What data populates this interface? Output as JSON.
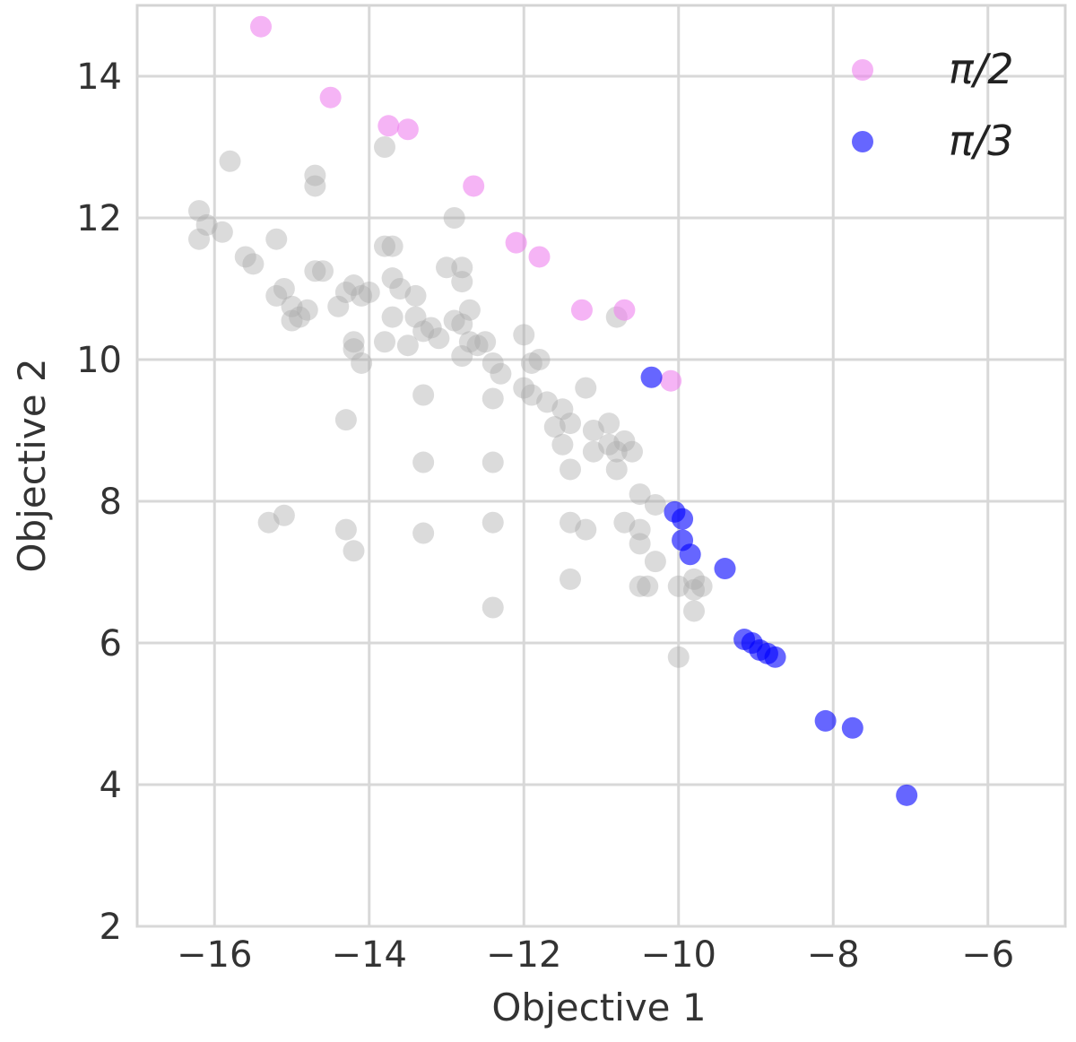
{
  "chart_data": {
    "type": "scatter",
    "title": "",
    "xlabel": "Objective 1",
    "ylabel": "Objective 2",
    "xlim": [
      -17,
      -5
    ],
    "ylim": [
      2,
      15
    ],
    "xticks": [
      -16,
      -14,
      -12,
      -10,
      -8,
      -6
    ],
    "yticks": [
      2,
      4,
      6,
      8,
      10,
      12,
      14
    ],
    "xtick_labels": [
      "−16",
      "−14",
      "−12",
      "−10",
      "−8",
      "−6"
    ],
    "ytick_labels": [
      "2",
      "4",
      "6",
      "8",
      "10",
      "12",
      "14"
    ],
    "grid": true,
    "legend_position": "top-right",
    "background_points": {
      "color": "#a9a9a9",
      "points": [
        [
          -15.8,
          12.8
        ],
        [
          -16.2,
          12.1
        ],
        [
          -16.1,
          11.9
        ],
        [
          -15.9,
          11.8
        ],
        [
          -16.2,
          11.7
        ],
        [
          -15.6,
          11.45
        ],
        [
          -15.5,
          11.35
        ],
        [
          -15.2,
          11.7
        ],
        [
          -15.1,
          11.0
        ],
        [
          -15.2,
          10.9
        ],
        [
          -15.0,
          10.75
        ],
        [
          -15.0,
          10.55
        ],
        [
          -14.9,
          10.6
        ],
        [
          -14.8,
          10.7
        ],
        [
          -14.7,
          11.25
        ],
        [
          -14.6,
          11.25
        ],
        [
          -14.7,
          12.6
        ],
        [
          -14.7,
          12.45
        ],
        [
          -14.4,
          10.75
        ],
        [
          -14.3,
          10.95
        ],
        [
          -14.2,
          11.05
        ],
        [
          -14.1,
          10.9
        ],
        [
          -14.0,
          10.95
        ],
        [
          -14.2,
          10.25
        ],
        [
          -14.2,
          10.15
        ],
        [
          -14.1,
          9.95
        ],
        [
          -14.3,
          9.15
        ],
        [
          -13.8,
          13.0
        ],
        [
          -13.8,
          11.6
        ],
        [
          -13.7,
          11.6
        ],
        [
          -13.7,
          11.15
        ],
        [
          -13.6,
          11.0
        ],
        [
          -13.7,
          10.6
        ],
        [
          -13.8,
          10.25
        ],
        [
          -13.5,
          10.2
        ],
        [
          -13.4,
          10.9
        ],
        [
          -13.4,
          10.6
        ],
        [
          -13.3,
          10.4
        ],
        [
          -13.2,
          10.45
        ],
        [
          -13.1,
          10.3
        ],
        [
          -13.3,
          9.5
        ],
        [
          -13.3,
          8.55
        ],
        [
          -13.3,
          7.55
        ],
        [
          -12.9,
          12.0
        ],
        [
          -13.0,
          11.3
        ],
        [
          -12.8,
          11.3
        ],
        [
          -12.8,
          11.1
        ],
        [
          -12.9,
          10.55
        ],
        [
          -12.8,
          10.5
        ],
        [
          -12.7,
          10.7
        ],
        [
          -12.7,
          10.25
        ],
        [
          -12.6,
          10.2
        ],
        [
          -12.8,
          10.05
        ],
        [
          -12.5,
          10.25
        ],
        [
          -12.4,
          9.95
        ],
        [
          -12.3,
          9.8
        ],
        [
          -12.4,
          9.45
        ],
        [
          -12.4,
          8.55
        ],
        [
          -12.4,
          7.7
        ],
        [
          -12.4,
          6.5
        ],
        [
          -12.0,
          10.35
        ],
        [
          -11.9,
          9.95
        ],
        [
          -11.8,
          10.0
        ],
        [
          -12.0,
          9.6
        ],
        [
          -11.9,
          9.5
        ],
        [
          -11.7,
          9.4
        ],
        [
          -11.5,
          9.3
        ],
        [
          -11.6,
          9.05
        ],
        [
          -11.4,
          9.1
        ],
        [
          -11.5,
          8.8
        ],
        [
          -11.2,
          9.6
        ],
        [
          -11.1,
          9.0
        ],
        [
          -11.1,
          8.7
        ],
        [
          -10.9,
          9.1
        ],
        [
          -10.9,
          8.8
        ],
        [
          -10.8,
          8.7
        ],
        [
          -10.7,
          8.85
        ],
        [
          -10.6,
          8.7
        ],
        [
          -10.8,
          8.45
        ],
        [
          -11.4,
          8.45
        ],
        [
          -11.4,
          7.7
        ],
        [
          -11.2,
          7.6
        ],
        [
          -10.8,
          10.6
        ],
        [
          -10.7,
          7.7
        ],
        [
          -10.5,
          8.1
        ],
        [
          -10.5,
          7.6
        ],
        [
          -10.5,
          7.4
        ],
        [
          -10.3,
          7.95
        ],
        [
          -10.3,
          7.15
        ],
        [
          -10.5,
          6.8
        ],
        [
          -10.4,
          6.8
        ],
        [
          -10.0,
          6.8
        ],
        [
          -9.8,
          6.9
        ],
        [
          -9.8,
          6.75
        ],
        [
          -9.7,
          6.8
        ],
        [
          -10.0,
          5.8
        ],
        [
          -9.8,
          6.45
        ],
        [
          -11.4,
          6.9
        ],
        [
          -15.3,
          7.7
        ],
        [
          -15.1,
          7.8
        ],
        [
          -14.3,
          7.6
        ],
        [
          -14.2,
          7.3
        ]
      ]
    },
    "series": [
      {
        "name": "π/2",
        "color": "#ee82ee",
        "points": [
          [
            -15.4,
            14.7
          ],
          [
            -14.5,
            13.7
          ],
          [
            -13.75,
            13.3
          ],
          [
            -13.5,
            13.25
          ],
          [
            -12.65,
            12.45
          ],
          [
            -12.1,
            11.65
          ],
          [
            -11.8,
            11.45
          ],
          [
            -11.25,
            10.7
          ],
          [
            -10.7,
            10.7
          ],
          [
            -10.1,
            9.7
          ]
        ]
      },
      {
        "name": "π/3",
        "color": "#0000ff",
        "points": [
          [
            -10.35,
            9.75
          ],
          [
            -10.05,
            7.85
          ],
          [
            -9.95,
            7.75
          ],
          [
            -9.95,
            7.45
          ],
          [
            -9.85,
            7.25
          ],
          [
            -9.4,
            7.05
          ],
          [
            -9.15,
            6.05
          ],
          [
            -9.05,
            6.0
          ],
          [
            -8.95,
            5.9
          ],
          [
            -8.85,
            5.85
          ],
          [
            -8.75,
            5.8
          ],
          [
            -8.1,
            4.9
          ],
          [
            -7.75,
            4.8
          ],
          [
            -7.05,
            3.85
          ]
        ]
      }
    ]
  }
}
